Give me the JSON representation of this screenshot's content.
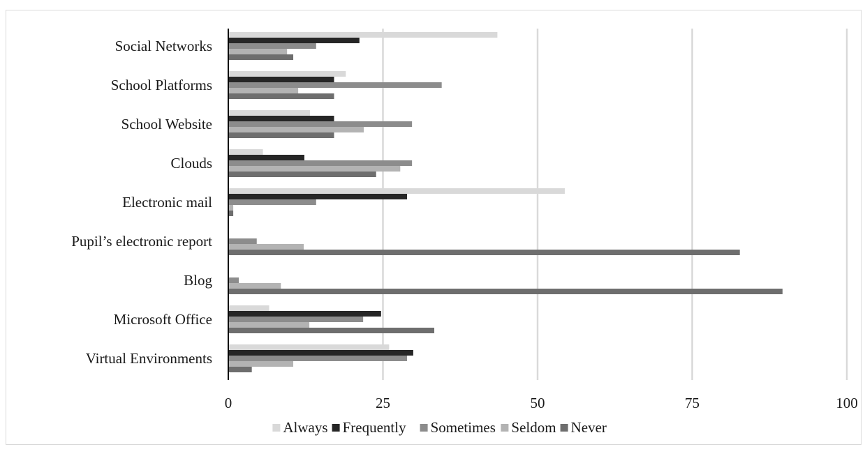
{
  "chart_data": {
    "type": "bar",
    "orientation": "horizontal",
    "categories": [
      "Social Networks",
      "School Platforms",
      "School Website",
      "Clouds",
      "Electronic mail",
      "Pupil’s electronic report",
      "Blog",
      "Microsoft Office",
      "Virtual Environments"
    ],
    "series": [
      {
        "name": "Always",
        "color": "#d9d9d9",
        "values": [
          43.5,
          19.0,
          13.2,
          5.6,
          54.4,
          0,
          0,
          6.6,
          26.0
        ]
      },
      {
        "name": "Frequently",
        "color": "#262626",
        "values": [
          21.2,
          17.1,
          17.1,
          12.3,
          28.9,
          0,
          0,
          24.7,
          29.9
        ]
      },
      {
        "name": "Sometimes",
        "color": "#8c8c8c",
        "values": [
          14.2,
          34.5,
          29.7,
          29.7,
          14.2,
          4.6,
          1.7,
          21.8,
          28.9
        ]
      },
      {
        "name": "Seldom",
        "color": "#b3b3b3",
        "values": [
          9.5,
          11.3,
          21.9,
          27.8,
          0.8,
          12.2,
          8.5,
          13.1,
          10.5
        ]
      },
      {
        "name": "Never",
        "color": "#6e6e6e",
        "values": [
          10.5,
          17.1,
          17.1,
          23.9,
          0.8,
          82.7,
          89.6,
          33.3,
          3.8
        ]
      }
    ],
    "xlim": [
      0,
      100
    ],
    "xticks": [
      "0",
      "25",
      "50",
      "75",
      "100"
    ],
    "grid": true,
    "legend": "bottom",
    "title": "",
    "xlabel": "",
    "ylabel": ""
  }
}
